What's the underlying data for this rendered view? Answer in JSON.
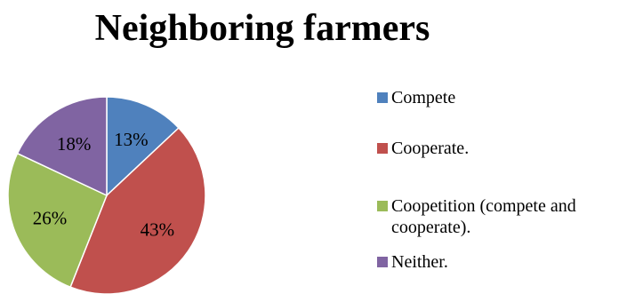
{
  "chart_data": {
    "type": "pie",
    "title": "Neighboring farmers",
    "categories": [
      "Compete",
      "Cooperate.",
      "Coopetition (compete and cooperate).",
      "Neither."
    ],
    "values": [
      13,
      43,
      26,
      18
    ],
    "data_labels": [
      "13%",
      "43%",
      "26%",
      "18%"
    ],
    "colors": [
      "#4F81BD",
      "#C0504D",
      "#9BBB59",
      "#8064A2"
    ],
    "legend_position": "right"
  }
}
